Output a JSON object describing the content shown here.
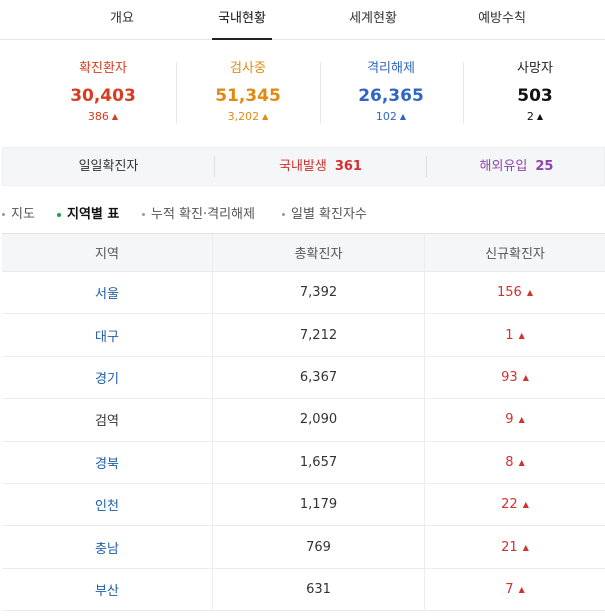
{
  "tabs": [
    {
      "label": "개요",
      "active": false
    },
    {
      "label": "국내현황",
      "active": true
    },
    {
      "label": "세계현황",
      "active": false
    },
    {
      "label": "예방수칙",
      "active": false
    }
  ],
  "stats": [
    {
      "label": "확진환자",
      "value": "30,403",
      "delta": "386",
      "color": "#d83b1f"
    },
    {
      "label": "검사중",
      "value": "51,345",
      "delta": "3,202",
      "color": "#e08a14"
    },
    {
      "label": "격리해제",
      "value": "26,365",
      "delta": "102",
      "color": "#2f66c2"
    },
    {
      "label": "사망자",
      "value": "503",
      "delta": "2",
      "color": "#111111"
    }
  ],
  "arrow_up": "▲",
  "daily": {
    "label": "일일확진자",
    "domestic_label": "국내발생",
    "domestic_value": "361",
    "overseas_label": "해외유입",
    "overseas_value": "25",
    "domestic_color": "#d32f2f",
    "overseas_color": "#8e44ad"
  },
  "subnav": [
    {
      "label": "지도",
      "active": false
    },
    {
      "label": "지역별 표",
      "active": true
    },
    {
      "label": "누적 확진·격리해제",
      "active": false
    },
    {
      "label": "일별 확진자수",
      "active": false
    }
  ],
  "table": {
    "headers": [
      "지역",
      "총확진자",
      "신규확진자"
    ],
    "rows": [
      {
        "region": "서울",
        "total": "7,392",
        "new": "156",
        "link": true
      },
      {
        "region": "대구",
        "total": "7,212",
        "new": "1",
        "link": true
      },
      {
        "region": "경기",
        "total": "6,367",
        "new": "93",
        "link": true
      },
      {
        "region": "검역",
        "total": "2,090",
        "new": "9",
        "link": false
      },
      {
        "region": "경북",
        "total": "1,657",
        "new": "8",
        "link": true
      },
      {
        "region": "인천",
        "total": "1,179",
        "new": "22",
        "link": true
      },
      {
        "region": "충남",
        "total": "769",
        "new": "21",
        "link": true
      },
      {
        "region": "부산",
        "total": "631",
        "new": "7",
        "link": true
      }
    ]
  }
}
